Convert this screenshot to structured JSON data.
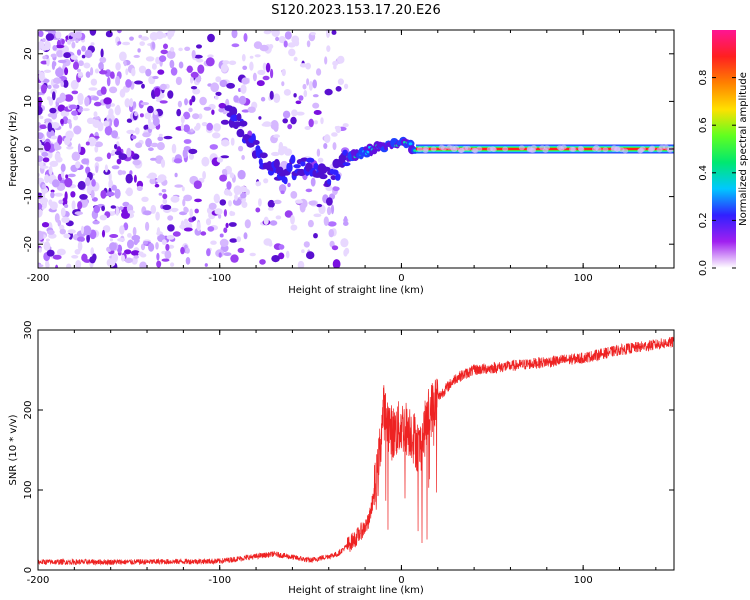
{
  "figure": {
    "title": "S120.2023.153.17.20.E26"
  },
  "chart_data": [
    {
      "type": "heatmap",
      "xlabel": "Height of straight line (km)",
      "ylabel": "Frequency (Hz)",
      "xlim": [
        -200,
        150
      ],
      "ylim": [
        -25,
        25
      ],
      "xticks": [
        -200,
        -100,
        0,
        100
      ],
      "yticks": [
        -20,
        -10,
        0,
        10,
        20
      ],
      "colorbar": {
        "label": "Normalized spectral amplitude",
        "range": [
          0,
          1
        ],
        "ticks": [
          0.0,
          0.2,
          0.4,
          0.6,
          0.8
        ],
        "colors": [
          "#ffffff",
          "#a020f0",
          "#3020ff",
          "#00c8ff",
          "#00e870",
          "#60ff20",
          "#ffe000",
          "#ff8000",
          "#ff2020",
          "#ff1493"
        ]
      },
      "trace": {
        "description_points": [
          [
            -95,
            7
          ],
          [
            -85,
            3
          ],
          [
            -75,
            -3
          ],
          [
            -65,
            -5
          ],
          [
            -55,
            -3
          ],
          [
            -45,
            -5
          ],
          [
            -38,
            -6
          ],
          [
            -32,
            -3
          ],
          [
            -25,
            -1
          ],
          [
            -15,
            0
          ],
          [
            -5,
            1
          ],
          [
            0,
            1.5
          ],
          [
            5,
            0.5
          ],
          [
            10,
            0
          ],
          [
            150,
            0
          ]
        ],
        "steady_freq": 0,
        "steady_from_x": 8
      },
      "noise_region": {
        "x": [
          -200,
          -40
        ],
        "y": [
          -25,
          25
        ]
      }
    },
    {
      "type": "line",
      "xlabel": "Height of straight line (km)",
      "ylabel": "SNR (10 * v/v)",
      "xlim": [
        -200,
        150
      ],
      "ylim": [
        0,
        300
      ],
      "xticks": [
        -200,
        -100,
        0,
        100
      ],
      "yticks": [
        0,
        100,
        200,
        300
      ],
      "series": [
        {
          "color": "#ee2222",
          "points": [
            [
              -200,
              10
            ],
            [
              -150,
              10
            ],
            [
              -100,
              11
            ],
            [
              -70,
              20
            ],
            [
              -50,
              12
            ],
            [
              -35,
              20
            ],
            [
              -25,
              40
            ],
            [
              -18,
              60
            ],
            [
              -13,
              120
            ],
            [
              -10,
              200
            ],
            [
              -5,
              170
            ],
            [
              0,
              180
            ],
            [
              5,
              175
            ],
            [
              10,
              150
            ],
            [
              15,
              195
            ],
            [
              20,
              215
            ],
            [
              25,
              228
            ],
            [
              30,
              240
            ],
            [
              40,
              250
            ],
            [
              60,
              255
            ],
            [
              80,
              260
            ],
            [
              100,
              265
            ],
            [
              120,
              275
            ],
            [
              150,
              285
            ]
          ]
        }
      ]
    }
  ]
}
